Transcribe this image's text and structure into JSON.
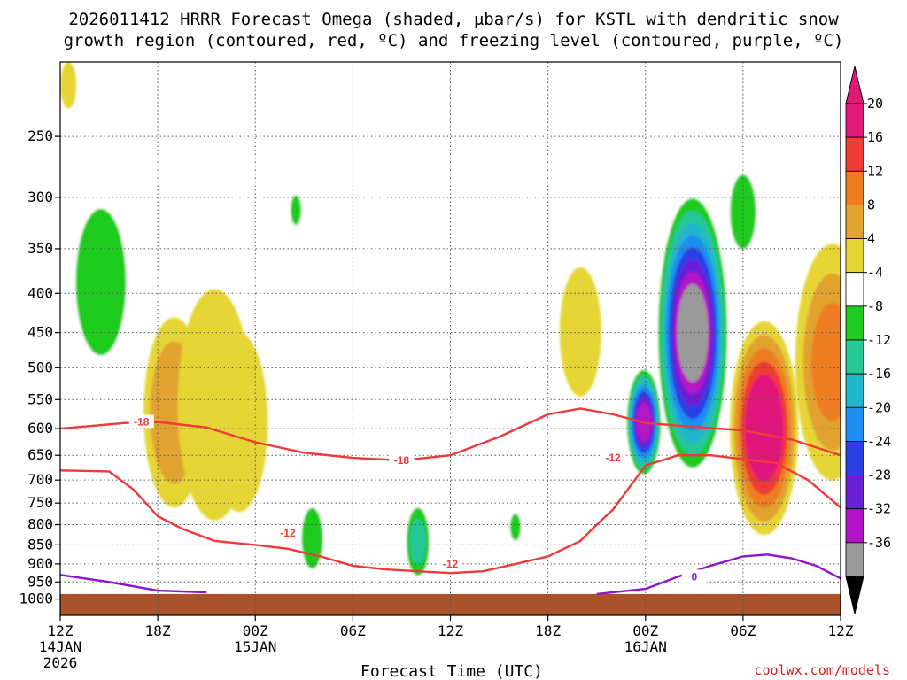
{
  "chart_data": {
    "type": "time-height",
    "title_line1": "2026011412 HRRR Forecast Omega (shaded, μbar/s) for KSTL with dendritic snow",
    "title_line2": "growth region (contoured, red, ºC) and freezing level (contoured, purple, ºC)",
    "xlabel": "Forecast Time (UTC)",
    "credit": "coolwx.com/models",
    "x_range_hours": [
      0,
      48
    ],
    "x_ticks": [
      {
        "hour": 0,
        "label": "12Z",
        "sub1": "14JAN",
        "sub2": "2026"
      },
      {
        "hour": 6,
        "label": "18Z",
        "sub1": "",
        "sub2": ""
      },
      {
        "hour": 12,
        "label": "00Z",
        "sub1": "15JAN",
        "sub2": ""
      },
      {
        "hour": 18,
        "label": "06Z",
        "sub1": "",
        "sub2": ""
      },
      {
        "hour": 24,
        "label": "12Z",
        "sub1": "",
        "sub2": ""
      },
      {
        "hour": 30,
        "label": "18Z",
        "sub1": "",
        "sub2": ""
      },
      {
        "hour": 36,
        "label": "00Z",
        "sub1": "16JAN",
        "sub2": ""
      },
      {
        "hour": 42,
        "label": "06Z",
        "sub1": "",
        "sub2": ""
      },
      {
        "hour": 48,
        "label": "12Z",
        "sub1": "",
        "sub2": ""
      }
    ],
    "y_axis": "pressure (hPa, log scale)",
    "y_range": [
      200,
      1050
    ],
    "y_ticks": [
      250,
      300,
      350,
      400,
      450,
      500,
      550,
      600,
      650,
      700,
      750,
      800,
      850,
      900,
      950,
      1000
    ],
    "grid": "dotted",
    "colorbar": {
      "labels": [
        "20",
        "16",
        "12",
        "8",
        "4",
        "-4",
        "-8",
        "-12",
        "-16",
        "-20",
        "-24",
        "-28",
        "-32",
        "-36"
      ],
      "bins": [
        {
          "lo": 20,
          "hi": 24,
          "color": "#e0197a"
        },
        {
          "lo": 16,
          "hi": 20,
          "color": "#ef3b36"
        },
        {
          "lo": 12,
          "hi": 16,
          "color": "#ee7d22"
        },
        {
          "lo": 8,
          "hi": 12,
          "color": "#e2a32f"
        },
        {
          "lo": 4,
          "hi": 8,
          "color": "#e5d535"
        },
        {
          "lo": -4,
          "hi": 4,
          "color": "#ffffff"
        },
        {
          "lo": -8,
          "hi": -4,
          "color": "#1ecb1f"
        },
        {
          "lo": -12,
          "hi": -8,
          "color": "#27c796"
        },
        {
          "lo": -16,
          "hi": -12,
          "color": "#22b6cc"
        },
        {
          "lo": -20,
          "hi": -16,
          "color": "#1e8ef2"
        },
        {
          "lo": -24,
          "hi": -20,
          "color": "#2a3fe6"
        },
        {
          "lo": -28,
          "hi": -24,
          "color": "#6a1fd6"
        },
        {
          "lo": -32,
          "hi": -28,
          "color": "#b313c6"
        },
        {
          "lo": -36,
          "hi": -32,
          "color": "#9a9a9a"
        }
      ],
      "above_color": "#e0197a",
      "below_color": "#000000"
    },
    "terrain": {
      "color": "#a9522b",
      "pressure_top": 985
    },
    "omega_features": [
      {
        "sign": "rising",
        "hour": 0.5,
        "p_top": 200,
        "p_bot": 230,
        "peak": 6
      },
      {
        "sign": "sinking",
        "hour": 2.5,
        "p_top": 272,
        "p_bot": 550,
        "peak": -6
      },
      {
        "sign": "rising",
        "hour": 7.0,
        "p_top": 430,
        "p_bot": 760,
        "peak": 10
      },
      {
        "sign": "rising",
        "hour": 9.5,
        "p_top": 395,
        "p_bot": 790,
        "peak": 6
      },
      {
        "sign": "rising",
        "hour": 11.0,
        "p_top": 450,
        "p_bot": 770,
        "peak": 5
      },
      {
        "sign": "sinking",
        "hour": 14.5,
        "p_top": 290,
        "p_bot": 335,
        "peak": -5
      },
      {
        "sign": "sinking",
        "hour": 15.5,
        "p_top": 720,
        "p_bot": 965,
        "peak": -7
      },
      {
        "sign": "sinking",
        "hour": 22.0,
        "p_top": 735,
        "p_bot": 965,
        "peak": -9
      },
      {
        "sign": "sinking",
        "hour": 28.0,
        "p_top": 755,
        "p_bot": 860,
        "peak": -5
      },
      {
        "sign": "rising",
        "hour": 32.0,
        "p_top": 370,
        "p_bot": 545,
        "peak": 5
      },
      {
        "sign": "sinking",
        "hour": 35.9,
        "p_top": 495,
        "p_bot": 700,
        "peak": -30
      },
      {
        "sign": "sinking",
        "hour": 38.9,
        "p_top": 290,
        "p_bot": 700,
        "peak": -36
      },
      {
        "sign": "sinking",
        "hour": 42.0,
        "p_top": 262,
        "p_bot": 375,
        "peak": -5
      },
      {
        "sign": "rising",
        "hour": 43.3,
        "p_top": 435,
        "p_bot": 825,
        "peak": 24
      },
      {
        "sign": "rising",
        "hour": 47.5,
        "p_top": 345,
        "p_bot": 700,
        "peak": 12
      }
    ],
    "dgz_contours": [
      {
        "label": "-18",
        "color": "#ee3a3a",
        "points": [
          [
            0,
            600
          ],
          [
            2,
            595
          ],
          [
            4,
            590
          ],
          [
            6,
            588
          ],
          [
            9,
            598
          ],
          [
            12,
            625
          ],
          [
            15,
            645
          ],
          [
            18,
            655
          ],
          [
            21,
            660
          ],
          [
            24,
            650
          ],
          [
            27,
            615
          ],
          [
            30,
            575
          ],
          [
            32,
            565
          ],
          [
            34,
            575
          ],
          [
            36,
            590
          ],
          [
            39,
            597
          ],
          [
            42,
            603
          ],
          [
            45,
            620
          ],
          [
            48,
            650
          ]
        ],
        "label_positions": [
          [
            5,
            588
          ],
          [
            21,
            660
          ]
        ]
      },
      {
        "label": "-12",
        "color": "#ee3a3a",
        "points": [
          [
            0,
            680
          ],
          [
            3,
            682
          ],
          [
            4.5,
            720
          ],
          [
            6,
            780
          ],
          [
            7.5,
            810
          ],
          [
            9.5,
            840
          ],
          [
            12,
            850
          ],
          [
            14,
            860
          ],
          [
            16,
            880
          ],
          [
            18,
            905
          ],
          [
            20,
            915
          ],
          [
            22,
            920
          ],
          [
            24,
            925
          ],
          [
            26,
            920
          ],
          [
            28,
            900
          ],
          [
            30,
            880
          ],
          [
            32,
            840
          ],
          [
            33,
            800
          ],
          [
            34,
            765
          ],
          [
            36,
            670
          ],
          [
            38,
            650
          ],
          [
            40,
            650
          ],
          [
            44,
            665
          ],
          [
            46,
            700
          ],
          [
            48,
            760
          ]
        ],
        "label_positions": [
          [
            14,
            820
          ],
          [
            24,
            900
          ],
          [
            34,
            655
          ]
        ]
      }
    ],
    "freezing_level": {
      "label": "0",
      "color": "#8f14c9",
      "segments": [
        [
          [
            0,
            930
          ],
          [
            3,
            950
          ],
          [
            6,
            975
          ],
          [
            9,
            980
          ]
        ],
        [
          [
            33,
            985
          ],
          [
            36,
            970
          ],
          [
            38,
            935
          ],
          [
            40,
            905
          ],
          [
            42,
            880
          ],
          [
            43.5,
            875
          ],
          [
            45,
            885
          ],
          [
            46.5,
            905
          ],
          [
            48,
            940
          ]
        ]
      ],
      "label_positions": [
        [
          39,
          935
        ]
      ]
    }
  }
}
